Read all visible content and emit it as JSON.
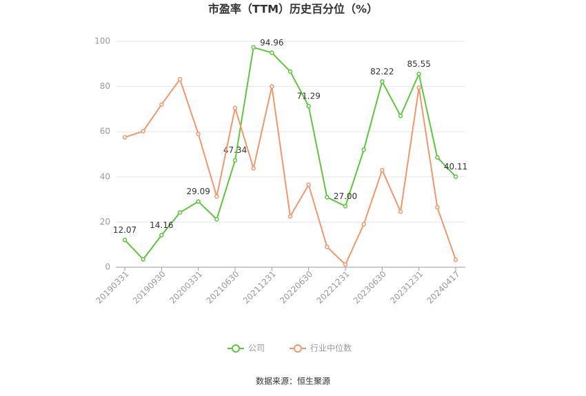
{
  "chart_data": {
    "type": "line",
    "title": "市盈率（TTM）历史百分位（%）",
    "source": "数据来源：恒生聚源",
    "categories": [
      "20190331",
      null,
      "20190930",
      null,
      "20200331",
      null,
      "20210630",
      null,
      "20211231",
      null,
      "20220630",
      null,
      "20221231",
      null,
      "20230630",
      null,
      "20231231",
      null,
      "20240417"
    ],
    "series": [
      {
        "name": "公司",
        "color": "#5cc63c",
        "values": [
          12.07,
          3.5,
          14.16,
          24.2,
          29.09,
          21.2,
          47.34,
          97.3,
          94.96,
          86.6,
          71.29,
          31.0,
          27.0,
          52.0,
          82.22,
          67.0,
          85.55,
          48.6,
          40.11
        ],
        "value_labels": [
          "12.07",
          null,
          "14.16",
          null,
          "29.09",
          null,
          "47.34",
          null,
          "94.96",
          null,
          "71.29",
          null,
          "27.00",
          null,
          "82.22",
          null,
          "85.55",
          null,
          "40.11"
        ]
      },
      {
        "name": "行业中位数",
        "color": "#f5956b",
        "values": [
          57.5,
          60.2,
          72.0,
          83.2,
          59.0,
          31.3,
          70.5,
          43.8,
          80.0,
          22.5,
          36.5,
          9.0,
          1.2,
          19.0,
          43.0,
          24.6,
          79.5,
          26.5,
          3.3
        ]
      }
    ],
    "ylim": [
      0,
      100
    ],
    "yticks": [
      0,
      20,
      40,
      60,
      80,
      100
    ],
    "grid": true,
    "legend": "bottom"
  }
}
